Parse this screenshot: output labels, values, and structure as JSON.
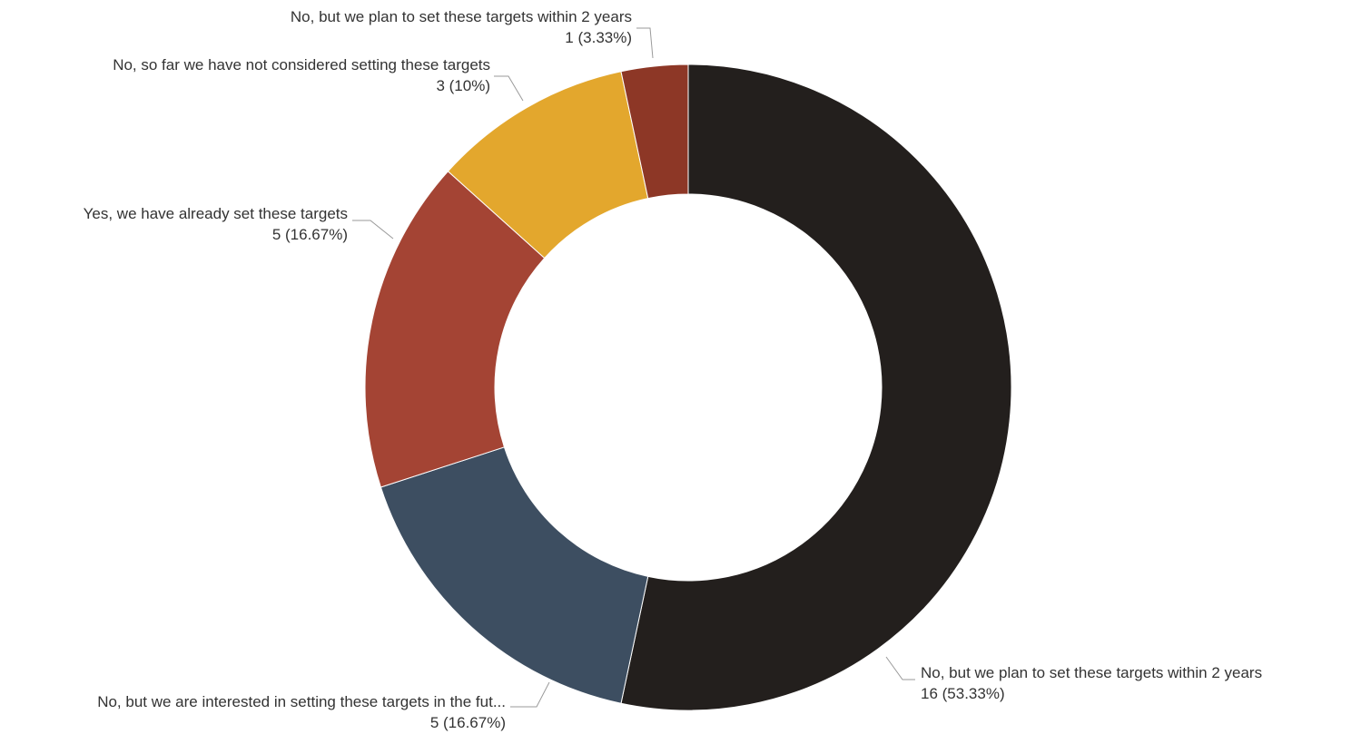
{
  "chart_data": {
    "type": "pie",
    "donut": true,
    "legend": "none",
    "slices": [
      {
        "label": "No,  but we plan to set these targets within 2 years",
        "value": 16,
        "display": "16 (53.33%)",
        "color": "#231f1d"
      },
      {
        "label": "No, but we are interested in setting these targets in the fut...",
        "value": 5,
        "display": "5 (16.67%)",
        "color": "#3d4e61"
      },
      {
        "label": "Yes, we have already set these targets",
        "value": 5,
        "display": "5 (16.67%)",
        "color": "#a44434"
      },
      {
        "label": "No, so far we have not considered setting these targets",
        "value": 3,
        "display": "3 (10%)",
        "color": "#e3a72d"
      },
      {
        "label": "No, but we plan to set these targets within 2 years",
        "value": 1,
        "display": "1 (3.33%)",
        "color": "#8d3726"
      }
    ]
  }
}
